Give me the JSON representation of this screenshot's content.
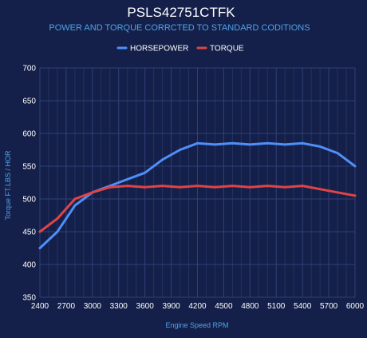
{
  "chart_data": {
    "type": "line",
    "title": "PSLS42751CTFK",
    "subtitle": "POWER AND TORQUE CORRCTED TO STANDARD CODITIONS",
    "xlabel": "Engine Speed RPM",
    "ylabel": "Torque FT.LBS / HOR",
    "xlim": [
      2400,
      6000
    ],
    "ylim": [
      350,
      700
    ],
    "x_ticks": [
      2400,
      2700,
      3000,
      3300,
      3600,
      3900,
      4200,
      4500,
      4800,
      5100,
      5400,
      5700,
      6000
    ],
    "y_ticks": [
      350,
      400,
      450,
      500,
      550,
      600,
      650,
      700
    ],
    "legend_position": "top-center",
    "grid": true,
    "x": [
      2400,
      2600,
      2800,
      3000,
      3200,
      3400,
      3600,
      3800,
      4000,
      4200,
      4400,
      4600,
      4800,
      5000,
      5200,
      5400,
      5600,
      5800,
      6000
    ],
    "series": [
      {
        "name": "HORSEPOWER",
        "color": "#4f8ff7",
        "values": [
          425,
          450,
          490,
          510,
          520,
          530,
          540,
          560,
          575,
          585,
          583,
          585,
          583,
          585,
          583,
          585,
          580,
          570,
          550
        ]
      },
      {
        "name": "TORQUE",
        "color": "#e04444",
        "values": [
          450,
          470,
          500,
          510,
          518,
          520,
          518,
          520,
          518,
          520,
          518,
          520,
          518,
          520,
          518,
          520,
          515,
          510,
          505
        ]
      }
    ]
  },
  "colors": {
    "background": "#14204a",
    "grid": "#2f4178",
    "subtitle": "#4fa3e8",
    "axis_title": "#4fa3e8"
  }
}
